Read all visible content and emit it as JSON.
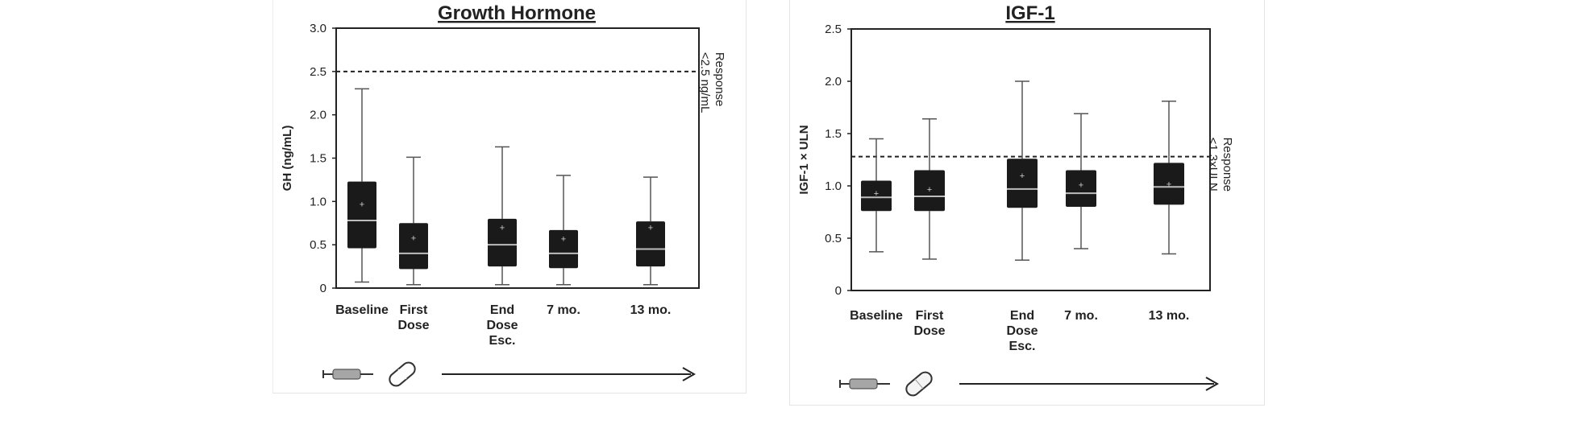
{
  "chart_data": [
    {
      "type": "box",
      "title": "Growth Hormone",
      "ylabel": "GH (ng/mL)",
      "ylim": [
        0,
        3.0
      ],
      "yticks": [
        "0",
        "0.5",
        "1.0",
        "1.5",
        "2.0",
        "2.5",
        "3.0"
      ],
      "categories": [
        {
          "label": [
            "Baseline"
          ],
          "x": 1
        },
        {
          "label": [
            "First",
            "Dose"
          ],
          "x": 2
        },
        {
          "label": [
            "End",
            "Dose",
            "Esc."
          ],
          "x": 3.7
        },
        {
          "label": [
            "7 mo."
          ],
          "x": 4.5
        },
        {
          "label": [
            "13 mo."
          ],
          "x": 5.75
        }
      ],
      "boxes": [
        {
          "min": 0.07,
          "q1": 0.46,
          "median": 0.78,
          "q3": 1.23,
          "max": 2.3,
          "mean": 0.97
        },
        {
          "min": 0.04,
          "q1": 0.22,
          "median": 0.4,
          "q3": 0.75,
          "max": 1.51,
          "mean": 0.58
        },
        {
          "min": 0.04,
          "q1": 0.25,
          "median": 0.5,
          "q3": 0.8,
          "max": 1.63,
          "mean": 0.7
        },
        {
          "min": 0.04,
          "q1": 0.23,
          "median": 0.4,
          "q3": 0.67,
          "max": 1.3,
          "mean": 0.57
        },
        {
          "min": 0.04,
          "q1": 0.25,
          "median": 0.45,
          "q3": 0.77,
          "max": 1.28,
          "mean": 0.7
        }
      ],
      "reference_line": {
        "value": 2.5,
        "label": [
          "Response",
          "<2.5 ng/mL"
        ]
      }
    },
    {
      "type": "box",
      "title": "IGF-1",
      "ylabel": "IGF-1 × ULN",
      "ylim": [
        0,
        2.5
      ],
      "yticks": [
        "0",
        "0.5",
        "1.0",
        "1.5",
        "2.0",
        "2.5"
      ],
      "categories": [
        {
          "label": [
            "Baseline"
          ],
          "x": 1
        },
        {
          "label": [
            "First",
            "Dose"
          ],
          "x": 2
        },
        {
          "label": [
            "End",
            "Dose",
            "Esc."
          ],
          "x": 3.7
        },
        {
          "label": [
            "7 mo."
          ],
          "x": 4.5
        },
        {
          "label": [
            "13 mo."
          ],
          "x": 5.75
        }
      ],
      "boxes": [
        {
          "min": 0.37,
          "q1": 0.76,
          "median": 0.89,
          "q3": 1.05,
          "max": 1.45,
          "mean": 0.93
        },
        {
          "min": 0.3,
          "q1": 0.76,
          "median": 0.9,
          "q3": 1.15,
          "max": 1.64,
          "mean": 0.97
        },
        {
          "min": 0.29,
          "q1": 0.79,
          "median": 0.97,
          "q3": 1.26,
          "max": 2.0,
          "mean": 1.1
        },
        {
          "min": 0.4,
          "q1": 0.8,
          "median": 0.93,
          "q3": 1.15,
          "max": 1.69,
          "mean": 1.01
        },
        {
          "min": 0.35,
          "q1": 0.82,
          "median": 0.99,
          "q3": 1.22,
          "max": 1.81,
          "mean": 1.02
        }
      ],
      "reference_line": {
        "value": 1.28,
        "label": [
          "Response",
          "<1.3xULN"
        ]
      }
    }
  ],
  "timeline": {
    "icons": [
      "syringe-icon",
      "capsule-icon"
    ],
    "arrow": "right-arrow-icon"
  }
}
